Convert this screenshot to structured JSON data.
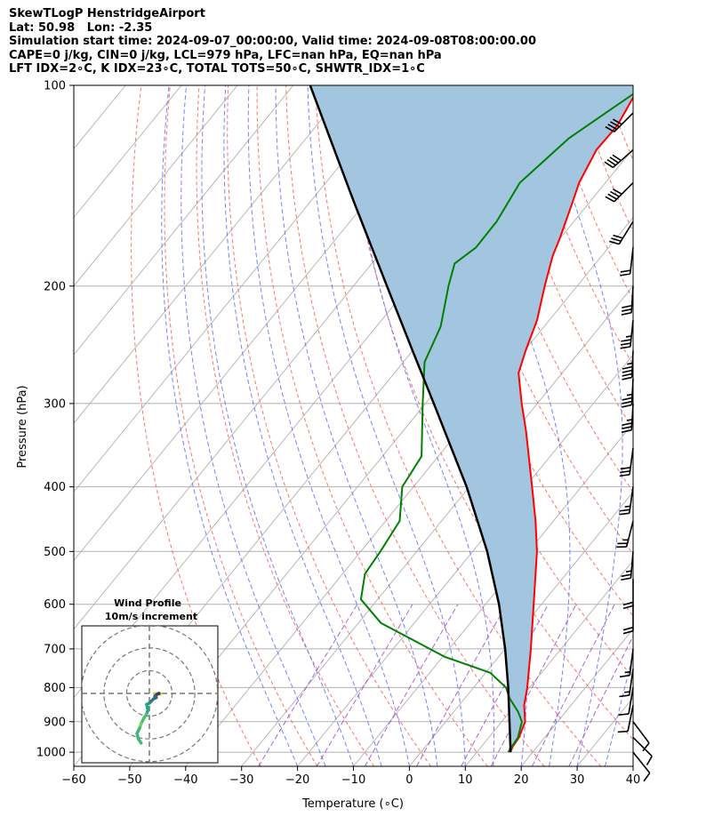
{
  "header": {
    "line1": "SkewTLogP HenstridgeAirport",
    "line2": "Lat: 50.98   Lon: -2.35",
    "line3": "Simulation start time: 2024-09-07_00:00:00, Valid time: 2024-09-08T08:00:00.00",
    "line4": "CAPE=0 j/kg, CIN=0 j/kg, LCL=979 hPa, LFC=nan hPa, EQ=nan hPa",
    "line5": "LFT IDX=2∘C, K IDX=23∘C, TOTAL TOTS=50∘C, SHWTR_IDX=1∘C"
  },
  "inset": {
    "title": "Wind Profile",
    "subtitle": "10m/s increment"
  },
  "colors": {
    "temperature": "#ff0000",
    "dewpoint": "#008000",
    "parcel": "#000000",
    "cin_fill": "#a3c6e0",
    "dry_adiabat": "#ff6060",
    "moist_adiabat": "#5a6dff",
    "mixing_ratio": "#9b3fc4",
    "isotherm": "#b0b0b0"
  },
  "chart_data": {
    "type": "line",
    "skew": "skew-T log-p",
    "xlabel": "Temperature (∘C)",
    "ylabel": "Pressure (hPa)",
    "xlim": [
      -60,
      40
    ],
    "ylim": [
      1050,
      100
    ],
    "yscale": "log",
    "grid": true,
    "x_ticks": [
      "−60",
      "−50",
      "−40",
      "−30",
      "−20",
      "−10",
      "0",
      "10",
      "20",
      "30",
      "40"
    ],
    "x_tick_values": [
      -60,
      -50,
      -40,
      -30,
      -20,
      -10,
      0,
      10,
      20,
      30,
      40
    ],
    "y_ticks": [
      "100",
      "200",
      "300",
      "400",
      "500",
      "600",
      "700",
      "800",
      "900",
      "1000"
    ],
    "y_tick_values": [
      100,
      200,
      300,
      400,
      500,
      600,
      700,
      800,
      900,
      1000
    ],
    "series": [
      {
        "key": "temperature",
        "points": [
          [
            1000,
            16
          ],
          [
            980,
            15.6
          ],
          [
            950,
            15.4
          ],
          [
            900,
            14.2
          ],
          [
            850,
            11.6
          ],
          [
            800,
            9.6
          ],
          [
            700,
            4.6
          ],
          [
            600,
            -1.4
          ],
          [
            500,
            -8.5
          ],
          [
            450,
            -13.2
          ],
          [
            400,
            -18.8
          ],
          [
            330,
            -28.0
          ],
          [
            300,
            -32.8
          ],
          [
            270,
            -37.8
          ],
          [
            250,
            -39.8
          ],
          [
            225,
            -42.2
          ],
          [
            200,
            -45.8
          ],
          [
            180,
            -48.8
          ],
          [
            170,
            -50.0
          ],
          [
            150,
            -53.0
          ],
          [
            140,
            -54.7
          ],
          [
            125,
            -56.4
          ],
          [
            115,
            -56.2
          ],
          [
            104,
            -57.5
          ],
          [
            100,
            -56.9
          ]
        ]
      },
      {
        "key": "dewpoint",
        "points": [
          [
            1000,
            15.6
          ],
          [
            950,
            15.2
          ],
          [
            900,
            13.6
          ],
          [
            870,
            11.5
          ],
          [
            830,
            8.0
          ],
          [
            800,
            5.8
          ],
          [
            760,
            0.8
          ],
          [
            720,
            -9.5
          ],
          [
            640,
            -26.0
          ],
          [
            590,
            -33.0
          ],
          [
            540,
            -36.0
          ],
          [
            500,
            -36.5
          ],
          [
            450,
            -37.5
          ],
          [
            400,
            -42.0
          ],
          [
            360,
            -43.0
          ],
          [
            300,
            -50.5
          ],
          [
            260,
            -56.2
          ],
          [
            230,
            -58.5
          ],
          [
            200,
            -63.0
          ],
          [
            185,
            -65.2
          ],
          [
            175,
            -63.7
          ],
          [
            160,
            -63.8
          ],
          [
            140,
            -65.3
          ],
          [
            120,
            -63.0
          ],
          [
            100,
            -57.0
          ]
        ]
      },
      {
        "key": "parcel",
        "points": [
          [
            1000,
            16
          ],
          [
            979,
            15.1
          ],
          [
            900,
            11.4
          ],
          [
            800,
            6.2
          ],
          [
            700,
            0.0
          ],
          [
            600,
            -7.6
          ],
          [
            500,
            -17.4
          ],
          [
            400,
            -30.5
          ],
          [
            300,
            -48.5
          ],
          [
            250,
            -60.0
          ],
          [
            200,
            -74.0
          ],
          [
            150,
            -92.0
          ],
          [
            100,
            -117.0
          ]
        ]
      }
    ],
    "wind_barbs": [
      {
        "p": 1000,
        "u": -4,
        "v": 5
      },
      {
        "p": 950,
        "u": -4,
        "v": 4
      },
      {
        "p": 900,
        "u": -3,
        "v": 4
      },
      {
        "p": 850,
        "u": 1,
        "v": 5
      },
      {
        "p": 800,
        "u": 1,
        "v": 6
      },
      {
        "p": 750,
        "u": 1,
        "v": 7
      },
      {
        "p": 700,
        "u": 1,
        "v": 8
      },
      {
        "p": 600,
        "u": 0,
        "v": 10
      },
      {
        "p": 550,
        "u": 0,
        "v": 10
      },
      {
        "p": 500,
        "u": 1,
        "v": 12
      },
      {
        "p": 450,
        "u": 3,
        "v": 12
      },
      {
        "p": 400,
        "u": 2,
        "v": 14
      },
      {
        "p": 350,
        "u": 2,
        "v": 15
      },
      {
        "p": 300,
        "u": 1,
        "v": 17
      },
      {
        "p": 275,
        "u": 1,
        "v": 19
      },
      {
        "p": 250,
        "u": 1,
        "v": 22
      },
      {
        "p": 225,
        "u": 2,
        "v": 19
      },
      {
        "p": 200,
        "u": 1,
        "v": 16
      },
      {
        "p": 175,
        "u": 1,
        "v": 9
      },
      {
        "p": 160,
        "u": 8,
        "v": 13
      },
      {
        "p": 140,
        "u": 14,
        "v": 14
      },
      {
        "p": 125,
        "u": 16,
        "v": 14
      },
      {
        "p": 110,
        "u": 14,
        "v": 14
      }
    ],
    "hodograph": {
      "rings": [
        10,
        20,
        30
      ],
      "points": [
        [
          4,
          0
        ],
        [
          6,
          0
        ],
        [
          8,
          -0.5
        ],
        [
          7,
          0
        ],
        [
          5,
          -1
        ],
        [
          4,
          -2
        ],
        [
          5,
          -3
        ],
        [
          3,
          -4
        ],
        [
          1,
          -6
        ],
        [
          0,
          -7
        ],
        [
          -2,
          -8
        ],
        [
          -1,
          -12
        ],
        [
          -2,
          -15
        ],
        [
          -4,
          -18
        ],
        [
          -6,
          -22
        ],
        [
          -7,
          -25
        ],
        [
          -9,
          -29
        ],
        [
          -8,
          -33
        ],
        [
          -6,
          -36
        ]
      ]
    }
  }
}
